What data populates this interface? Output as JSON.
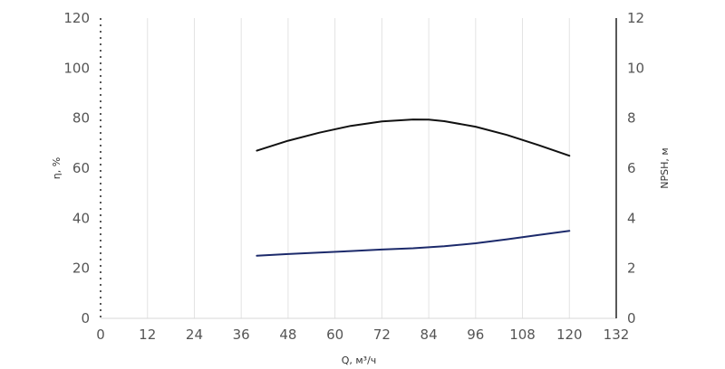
{
  "chart_data": {
    "type": "line",
    "xlabel": "Q, м³/ч",
    "ylabel_left": "η, %",
    "ylabel_right": "NPSH, м",
    "xlim": [
      0,
      132
    ],
    "ylim_left": [
      0,
      120
    ],
    "ylim_right": [
      0,
      12
    ],
    "x_ticks": [
      0,
      12,
      24,
      36,
      48,
      60,
      72,
      84,
      96,
      108,
      120,
      132
    ],
    "y_left_ticks": [
      0,
      20,
      40,
      60,
      80,
      100,
      120
    ],
    "y_right_ticks": [
      0,
      2,
      4,
      6,
      8,
      10,
      12
    ],
    "grid": "vertical",
    "series": [
      {
        "axis": "left",
        "color": "#111111",
        "x": [
          40,
          48,
          56,
          64,
          72,
          80,
          84,
          88,
          96,
          104,
          112,
          120
        ],
        "y": [
          67,
          71,
          74.2,
          76.9,
          78.7,
          79.5,
          79.4,
          78.8,
          76.6,
          73.3,
          69.3,
          65
        ]
      },
      {
        "axis": "right",
        "color": "#1c2a6b",
        "x": [
          40,
          48,
          56,
          64,
          72,
          80,
          84,
          88,
          96,
          104,
          112,
          120
        ],
        "y": [
          2.5,
          2.57,
          2.63,
          2.69,
          2.75,
          2.8,
          2.84,
          2.88,
          3.0,
          3.16,
          3.33,
          3.5
        ]
      }
    ]
  }
}
